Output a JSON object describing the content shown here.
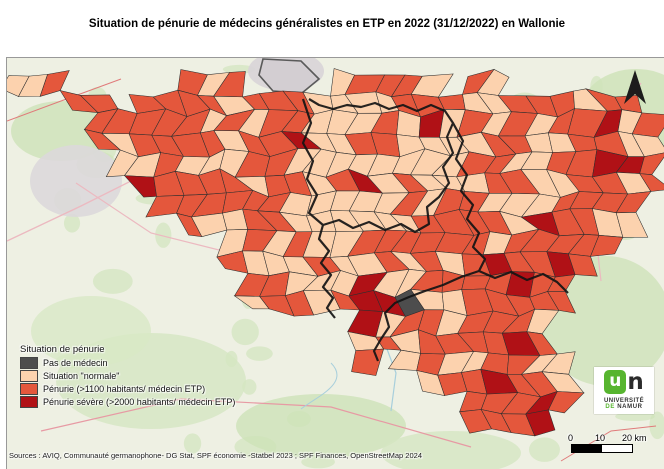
{
  "title": "Situation de pénurie de médecins généralistes en ETP en 2022 (31/12/2022) en Wallonie",
  "legend": {
    "title": "Situation de pénurie",
    "items": [
      {
        "key": "none",
        "label": "Pas de médecin",
        "color": "#4d4d4d"
      },
      {
        "key": "normal",
        "label": "Situation \"normale\"",
        "color": "#fcd2ae"
      },
      {
        "key": "shortage",
        "label": "Pénurie (>1100 habitants/ médecin ETP)",
        "color": "#e4573c"
      },
      {
        "key": "severe",
        "label": "Pénurie sévère (>2000 habitants/ médecin ETP)",
        "color": "#b01116"
      }
    ]
  },
  "sources": "Sources : AVIQ, Communauté germanophone- DG Stat, SPF économie -Statbel 2023 ; SPF Finances, OpenStreetMap 2024",
  "scale_bar": {
    "tick0": "0",
    "tick1": "10",
    "tick2": "20 km"
  },
  "logo": {
    "mark_u": "u",
    "mark_n": "n",
    "line1": "UNIVERSITÉ",
    "line2_de": "DE",
    "line2_namur": "NAMUR"
  }
}
